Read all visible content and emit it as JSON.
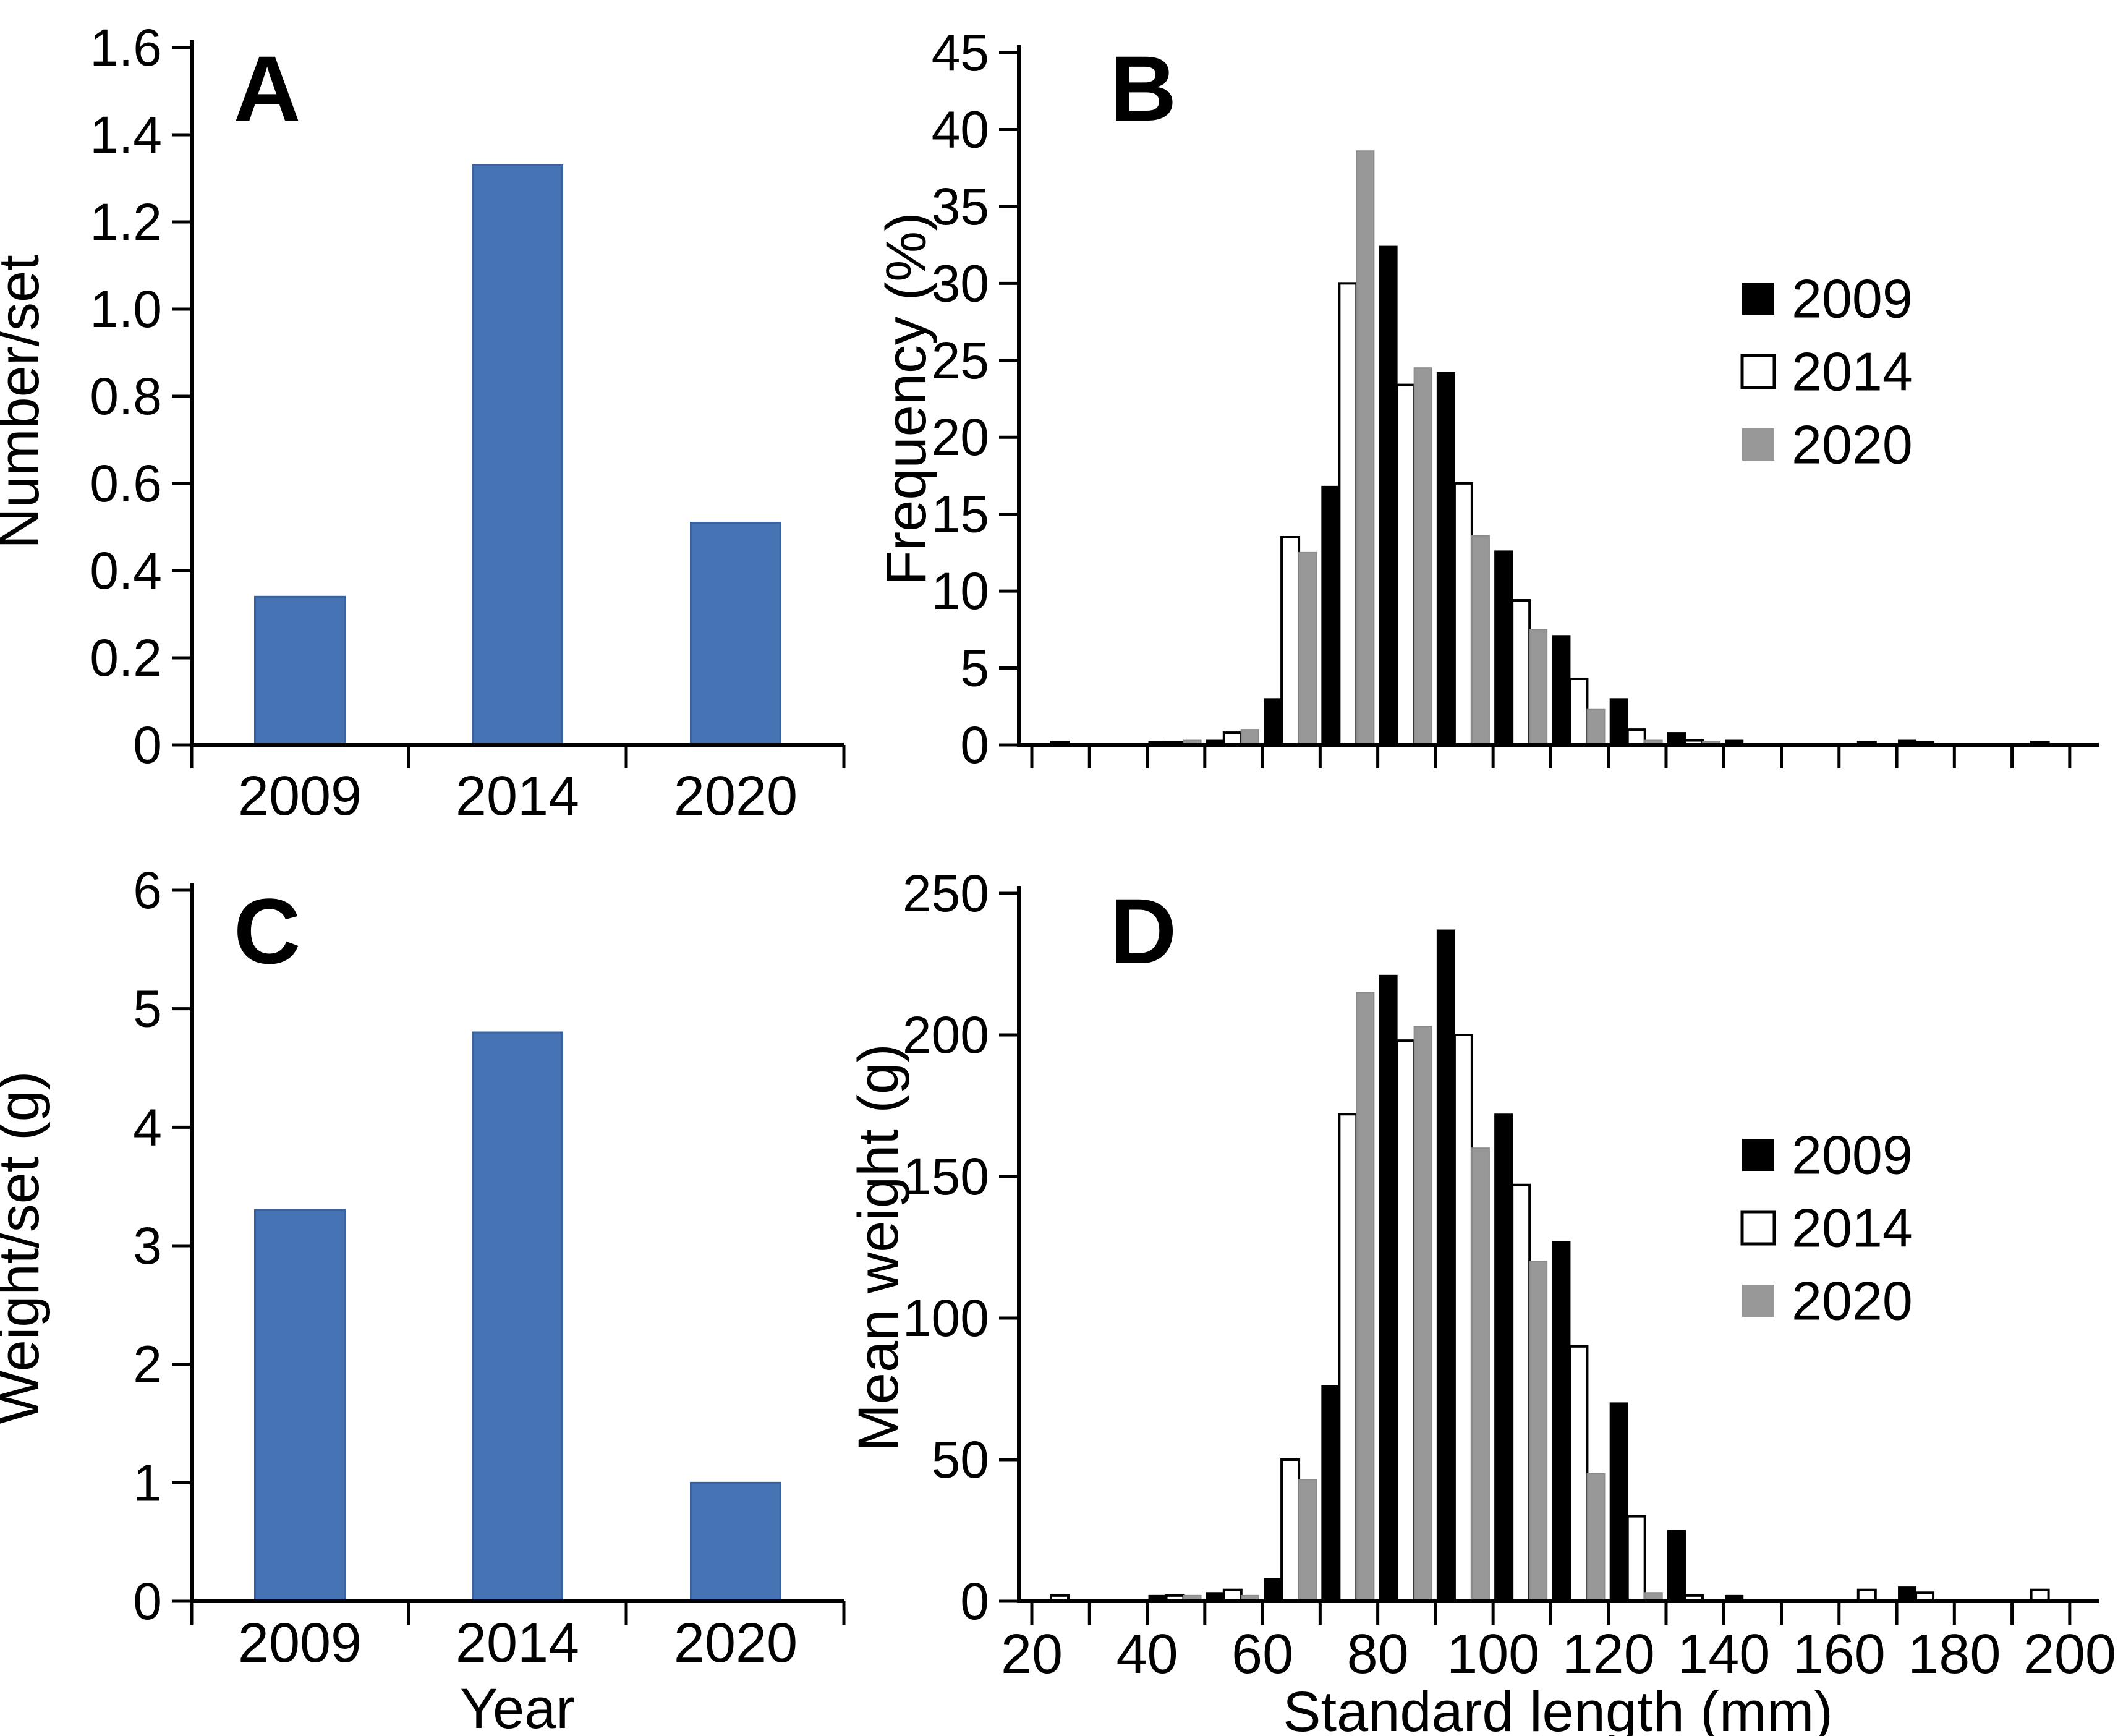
{
  "figure": {
    "background": "#ffffff",
    "axis_color": "#000000",
    "bar_blue": "#4573b4",
    "bar_blue_edge": "#3a62a0",
    "series_colors": {
      "y2009": "#000000",
      "y2014": "#ffffff",
      "y2020": "#989898"
    }
  },
  "chart_data": [
    {
      "type": "bar",
      "panel_label": "A",
      "categories": [
        "2009",
        "2014",
        "2020"
      ],
      "values": [
        0.34,
        1.33,
        0.51
      ],
      "title": "",
      "xlabel": "",
      "ylabel": "Number/set",
      "ylim": [
        0,
        1.6
      ],
      "ytick_step": 0.2,
      "bar_color": "#4573b4",
      "grid": false,
      "legend": null
    },
    {
      "type": "bar",
      "panel_label": "B",
      "mode": "grouped_histogram",
      "title": "",
      "xlabel": "",
      "ylabel": "Frequency (%)",
      "ylim": [
        0,
        45
      ],
      "ytick_step": 5,
      "xlim": [
        20,
        200
      ],
      "xtick_minor_step": 10,
      "xtick_label_step": 20,
      "show_x_labels": false,
      "bin_width": 10,
      "legend": {
        "position": "right",
        "entries": [
          "2009",
          "2014",
          "2020"
        ]
      },
      "series": [
        {
          "name": "2009",
          "color": "#000000",
          "edge": "#000000"
        },
        {
          "name": "2014",
          "color": "#ffffff",
          "edge": "#000000"
        },
        {
          "name": "2020",
          "color": "#989898",
          "edge": "#8a8a8a"
        }
      ],
      "bins": [
        {
          "start": 20,
          "values": [
            null,
            0.2,
            null
          ]
        },
        {
          "start": 40,
          "values": [
            0.2,
            0.2,
            0.3
          ]
        },
        {
          "start": 50,
          "values": [
            0.3,
            0.8,
            1.0
          ]
        },
        {
          "start": 60,
          "values": [
            3.0,
            13.5,
            12.5
          ]
        },
        {
          "start": 70,
          "values": [
            16.8,
            30.0,
            38.6
          ]
        },
        {
          "start": 80,
          "values": [
            32.4,
            23.4,
            24.5
          ]
        },
        {
          "start": 90,
          "values": [
            24.2,
            17.0,
            13.6
          ]
        },
        {
          "start": 100,
          "values": [
            12.6,
            9.4,
            7.5
          ]
        },
        {
          "start": 110,
          "values": [
            7.1,
            4.3,
            2.3
          ]
        },
        {
          "start": 120,
          "values": [
            3.0,
            1.0,
            0.3
          ]
        },
        {
          "start": 130,
          "values": [
            0.8,
            0.3,
            0.2
          ]
        },
        {
          "start": 140,
          "values": [
            0.3,
            null,
            null
          ]
        },
        {
          "start": 160,
          "values": [
            null,
            0.2,
            null
          ]
        },
        {
          "start": 170,
          "values": [
            0.3,
            0.2,
            null
          ]
        },
        {
          "start": 190,
          "values": [
            null,
            0.2,
            null
          ]
        }
      ]
    },
    {
      "type": "bar",
      "panel_label": "C",
      "categories": [
        "2009",
        "2014",
        "2020"
      ],
      "values": [
        3.3,
        4.8,
        1.0
      ],
      "title": "",
      "xlabel": "Year",
      "ylabel": "Weight/set (g)",
      "ylim": [
        0,
        6
      ],
      "ytick_step": 1,
      "bar_color": "#4573b4",
      "grid": false,
      "legend": null
    },
    {
      "type": "bar",
      "panel_label": "D",
      "mode": "grouped_histogram",
      "title": "",
      "xlabel": "Standard length (mm)",
      "ylabel": "Mean weight (g)",
      "ylim": [
        0,
        250
      ],
      "ytick_step": 50,
      "xlim": [
        20,
        200
      ],
      "xtick_minor_step": 10,
      "xtick_label_step": 20,
      "show_x_labels": true,
      "bin_width": 10,
      "legend": {
        "position": "right",
        "entries": [
          "2009",
          "2014",
          "2020"
        ]
      },
      "series": [
        {
          "name": "2009",
          "color": "#000000",
          "edge": "#000000"
        },
        {
          "name": "2014",
          "color": "#ffffff",
          "edge": "#000000"
        },
        {
          "name": "2020",
          "color": "#989898",
          "edge": "#8a8a8a"
        }
      ],
      "bins": [
        {
          "start": 20,
          "values": [
            null,
            2,
            null
          ]
        },
        {
          "start": 40,
          "values": [
            2,
            2,
            2
          ]
        },
        {
          "start": 50,
          "values": [
            3,
            4,
            2
          ]
        },
        {
          "start": 60,
          "values": [
            8,
            50,
            43
          ]
        },
        {
          "start": 70,
          "values": [
            76,
            172,
            215
          ]
        },
        {
          "start": 80,
          "values": [
            221,
            198,
            203
          ]
        },
        {
          "start": 90,
          "values": [
            237,
            200,
            160
          ]
        },
        {
          "start": 100,
          "values": [
            172,
            147,
            120
          ]
        },
        {
          "start": 110,
          "values": [
            127,
            90,
            45
          ]
        },
        {
          "start": 120,
          "values": [
            70,
            30,
            3
          ]
        },
        {
          "start": 130,
          "values": [
            25,
            2,
            null
          ]
        },
        {
          "start": 140,
          "values": [
            2,
            null,
            null
          ]
        },
        {
          "start": 160,
          "values": [
            null,
            4,
            null
          ]
        },
        {
          "start": 170,
          "values": [
            5,
            3,
            null
          ]
        },
        {
          "start": 190,
          "values": [
            null,
            4,
            null
          ]
        }
      ]
    }
  ]
}
